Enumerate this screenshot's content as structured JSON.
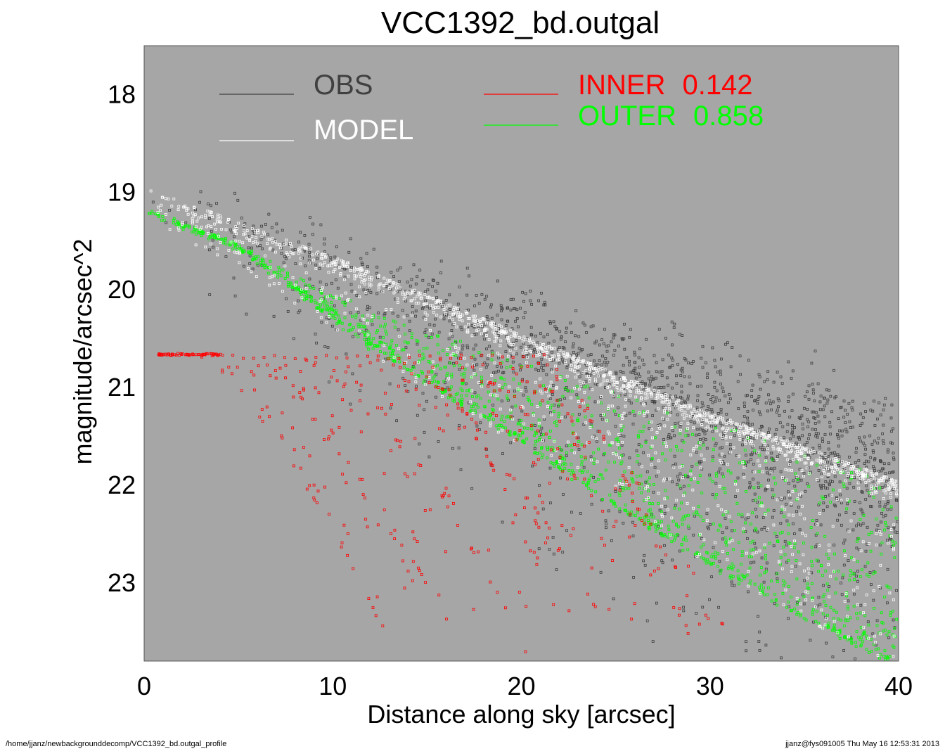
{
  "footer": {
    "left": "/home/jjanz/newbackgrounddecomp/VCC1392_bd.outgal_profile",
    "right": "jjanz@fys091005  Thu May 16 12:53:31 2013"
  },
  "colors": {
    "plot_bg": "#a6a6a6",
    "obs": "#404040",
    "model": "#ffffff",
    "inner": "#ff0000",
    "outer": "#00ff00"
  },
  "chart_data": {
    "type": "scatter",
    "title": "VCC1392_bd.outgal",
    "xlabel": "Distance along sky [arcsec]",
    "ylabel": "magnitude/arcsec^2",
    "xlim": [
      0,
      40
    ],
    "ylim": [
      23.8,
      17.5
    ],
    "y_inverted": true,
    "grid": false,
    "legend_placement": "top",
    "xticks": [
      "0",
      "10",
      "20",
      "30",
      "40"
    ],
    "yticks": [
      "18",
      "19",
      "20",
      "21",
      "22",
      "23"
    ],
    "legend": [
      {
        "label": "OBS",
        "value": "",
        "color": "#404040"
      },
      {
        "label": "MODEL",
        "value": "",
        "color": "#ffffff"
      },
      {
        "label": "INNER",
        "value": "0.142",
        "color": "#ff0000"
      },
      {
        "label": "OUTER",
        "value": "0.858",
        "color": "#00ff00"
      }
    ],
    "series": [
      {
        "name": "OBS",
        "color": "#404040",
        "trend_x": [
          0.2,
          5,
          10,
          15,
          20,
          25,
          30,
          35,
          40
        ],
        "trend_y": [
          18.9,
          19.3,
          19.7,
          20.1,
          20.45,
          20.8,
          21.15,
          21.5,
          21.9
        ],
        "scatter_mag": 0.9
      },
      {
        "name": "MODEL",
        "color": "#ffffff",
        "ridge_x": [
          0.2,
          5,
          10,
          15,
          20,
          25,
          30,
          35,
          40
        ],
        "ridge_y": [
          18.95,
          19.3,
          19.65,
          20.05,
          20.45,
          20.85,
          21.25,
          21.6,
          21.95
        ],
        "lower_envelope_y": [
          19.3,
          19.75,
          20.4,
          21.05,
          21.6,
          22.25,
          22.85,
          23.4,
          23.85
        ]
      },
      {
        "name": "INNER",
        "color": "#ff0000",
        "plateau_mag": 20.65,
        "plateau_x": [
          0.7,
          4.0
        ],
        "tail_to_x": 32,
        "tail_max_mag": 23.8
      },
      {
        "name": "OUTER",
        "color": "#00ff00",
        "ridge_x": [
          0.2,
          5,
          10,
          15,
          20,
          25,
          30,
          35,
          40
        ],
        "ridge_y": [
          19.2,
          19.55,
          20.3,
          20.95,
          21.55,
          22.2,
          22.8,
          23.35,
          23.85
        ],
        "spread_upper_y": [
          19.2,
          19.55,
          20.05,
          20.4,
          20.75,
          21.05,
          21.35,
          21.65,
          21.95
        ]
      }
    ]
  }
}
